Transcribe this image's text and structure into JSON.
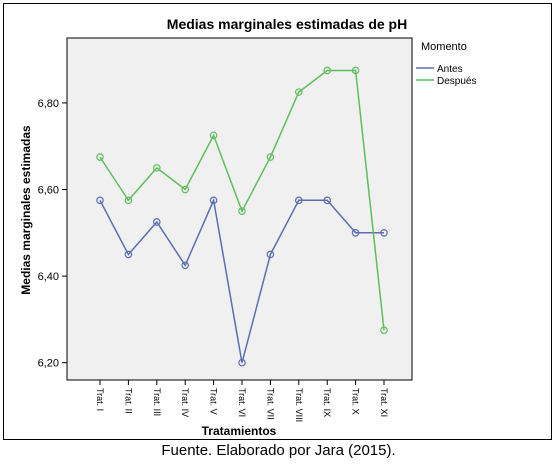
{
  "caption": "Fuente. Elaborado por Jara (2015).",
  "chart_data": {
    "type": "line",
    "title": "Medias marginales estimadas de pH",
    "xlabel": "Tratamientos",
    "ylabel": "Medias marginales estimadas",
    "categories": [
      "Trat. I",
      "Trat. II",
      "Trat. III",
      "Trat. IV",
      "Trat. V",
      "Trat. VI",
      "Trat. VII",
      "Trat. VIII",
      "Trat. IX",
      "Trat. X",
      "Trat. XI"
    ],
    "ylim": [
      6.16,
      6.95
    ],
    "yticks": [
      6.2,
      6.4,
      6.6,
      6.8
    ],
    "ytick_labels": [
      "6,20",
      "6,40",
      "6,60",
      "6,80"
    ],
    "grid": false,
    "legend_title": "Momento",
    "legend_position": "right",
    "series": [
      {
        "name": "Antes",
        "color": "#5b6eb2",
        "values": [
          6.575,
          6.45,
          6.525,
          6.425,
          6.575,
          6.2,
          6.45,
          6.575,
          6.575,
          6.5,
          6.5
        ]
      },
      {
        "name": "Después",
        "color": "#5cbf5c",
        "values": [
          6.675,
          6.575,
          6.65,
          6.6,
          6.725,
          6.55,
          6.675,
          6.825,
          6.875,
          6.875,
          6.275
        ]
      }
    ]
  }
}
